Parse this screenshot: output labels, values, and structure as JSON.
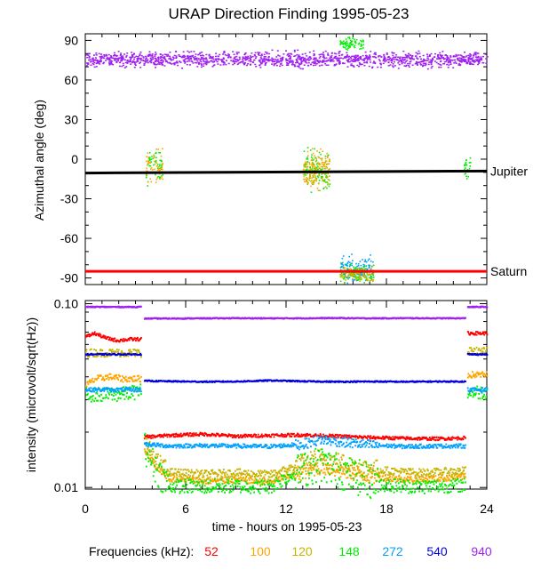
{
  "chart_data": [
    {
      "type": "scatter",
      "title": "URAP Direction Finding  1995-05-23",
      "xlabel": "",
      "ylabel": "Azimuthal angle (deg)",
      "xlim": [
        0,
        24
      ],
      "ylim": [
        -95,
        95
      ],
      "yticks": [
        90,
        60,
        30,
        0,
        -30,
        -60,
        -90
      ],
      "reference_lines": [
        {
          "name": "Jupiter",
          "y_start": -10.5,
          "y_end": -9,
          "color": "#000000"
        },
        {
          "name": "Saturn",
          "y_start": -85,
          "y_end": -85,
          "color": "#ff0000"
        }
      ],
      "clusters": [
        {
          "frequency_khz": "940",
          "x_range": [
            0,
            24
          ],
          "y_center": 76,
          "y_spread": 5,
          "color": "#a020f0",
          "density": "continuous"
        },
        {
          "frequency_khz": "148",
          "x_range": [
            3.6,
            4.6
          ],
          "y_center": -5,
          "y_spread": 12,
          "color": "#00ee00",
          "density": "sparse"
        },
        {
          "frequency_khz": "100",
          "x_range": [
            3.6,
            4.6
          ],
          "y_center": -5,
          "y_spread": 10,
          "color": "#ffa500",
          "density": "sparse"
        },
        {
          "frequency_khz": "148",
          "x_range": [
            13.0,
            14.6
          ],
          "y_center": -8,
          "y_spread": 14,
          "color": "#00ee00",
          "density": "sparse"
        },
        {
          "frequency_khz": "100",
          "x_range": [
            13.0,
            14.6
          ],
          "y_center": -6,
          "y_spread": 12,
          "color": "#ffa500",
          "density": "sparse"
        },
        {
          "frequency_khz": "120",
          "x_range": [
            13.0,
            14.6
          ],
          "y_center": -8,
          "y_spread": 12,
          "color": "#c8b400",
          "density": "sparse"
        },
        {
          "frequency_khz": "148",
          "x_range": [
            15.2,
            17.2
          ],
          "y_center": -86,
          "y_spread": 6,
          "color": "#00ee00",
          "density": "sparse"
        },
        {
          "frequency_khz": "272",
          "x_range": [
            15.2,
            17.2
          ],
          "y_center": -83,
          "y_spread": 8,
          "color": "#00a0ff",
          "density": "sparse"
        },
        {
          "frequency_khz": "120",
          "x_range": [
            15.2,
            17.2
          ],
          "y_center": -87,
          "y_spread": 5,
          "color": "#c8b400",
          "density": "sparse"
        },
        {
          "frequency_khz": "148",
          "x_range": [
            22.6,
            23.0
          ],
          "y_center": -5,
          "y_spread": 8,
          "color": "#00ee00",
          "density": "sparse"
        },
        {
          "frequency_khz": "148",
          "x_range": [
            15.2,
            16.6
          ],
          "y_center": 88,
          "y_spread": 4,
          "color": "#00ee00",
          "density": "sparse"
        }
      ]
    },
    {
      "type": "line",
      "title": "",
      "xlabel": "time - hours on 1995-05-23",
      "ylabel": "intensity (microvolt/sqrt(Hz))",
      "xlim": [
        0,
        24
      ],
      "ylim": [
        0.0098,
        0.104
      ],
      "yscale": "log",
      "yticks": [
        0.1,
        0.01
      ],
      "ytick_labels": [
        "0.10",
        "0.01"
      ],
      "xticks": [
        0,
        6,
        12,
        18,
        24
      ],
      "xtick_labels": [
        "0",
        "6",
        "12",
        "18",
        "24"
      ],
      "series": [
        {
          "name": "52",
          "color": "#ff0000",
          "x": [
            0,
            0.5,
            1.2,
            1.9,
            2.6,
            3.3,
            3.5,
            5,
            7,
            9,
            11,
            13,
            15,
            17,
            19,
            21,
            22.7,
            22.8,
            24
          ],
          "y": [
            0.066,
            0.069,
            0.065,
            0.063,
            0.064,
            0.064,
            0.0188,
            0.0192,
            0.0195,
            0.019,
            0.0192,
            0.0193,
            0.019,
            0.0187,
            0.0185,
            0.0184,
            0.0186,
            0.069,
            0.069
          ]
        },
        {
          "name": "100",
          "color": "#ffa500",
          "x": [
            0,
            0.6,
            1.4,
            2.2,
            3.0,
            3.3,
            3.5,
            4.2,
            5,
            7,
            9,
            11,
            12.5,
            14,
            16,
            18,
            20,
            22.7,
            22.8,
            24
          ],
          "y": [
            0.036,
            0.039,
            0.04,
            0.039,
            0.039,
            0.039,
            0.016,
            0.013,
            0.0112,
            0.0108,
            0.011,
            0.0107,
            0.0118,
            0.013,
            0.012,
            0.0112,
            0.011,
            0.0114,
            0.041,
            0.041
          ]
        },
        {
          "name": "120",
          "color": "#c8b400",
          "x": [
            0,
            1,
            2,
            3.3,
            3.5,
            4.2,
            5,
            7,
            9,
            11,
            12.5,
            14,
            16,
            18,
            20,
            22.7,
            22.8,
            24
          ],
          "y": [
            0.054,
            0.054,
            0.054,
            0.054,
            0.0178,
            0.014,
            0.0121,
            0.0118,
            0.012,
            0.0117,
            0.013,
            0.0145,
            0.013,
            0.0123,
            0.012,
            0.0123,
            0.055,
            0.055
          ]
        },
        {
          "name": "148",
          "color": "#00ee00",
          "x": [
            0,
            1,
            2,
            3.0,
            3.3,
            3.5,
            4.2,
            5,
            7,
            9,
            11,
            12.5,
            14,
            16,
            18,
            20,
            22.7,
            22.8,
            24
          ],
          "y": [
            0.032,
            0.032,
            0.032,
            0.033,
            0.034,
            0.0165,
            0.0125,
            0.0102,
            0.0101,
            0.0102,
            0.0101,
            0.012,
            0.0135,
            0.0115,
            0.0103,
            0.0101,
            0.0103,
            0.033,
            0.033
          ]
        },
        {
          "name": "272",
          "color": "#00a0ff",
          "x": [
            0,
            1,
            2,
            3.0,
            3.3,
            3.5,
            5,
            7,
            9,
            11,
            13,
            14,
            15,
            17,
            19,
            21,
            22.7,
            22.8,
            24
          ],
          "y": [
            0.034,
            0.034,
            0.034,
            0.034,
            0.034,
            0.0172,
            0.0168,
            0.0169,
            0.0168,
            0.0167,
            0.0172,
            0.0182,
            0.0178,
            0.017,
            0.0167,
            0.0168,
            0.0168,
            0.034,
            0.034
          ]
        },
        {
          "name": "540",
          "color": "#0000dd",
          "x": [
            0,
            1,
            2,
            3.3,
            3.5,
            5,
            7,
            9,
            11,
            13,
            15,
            17,
            19,
            21,
            22.7,
            22.8,
            24
          ],
          "y": [
            0.053,
            0.053,
            0.053,
            0.053,
            0.038,
            0.0378,
            0.0376,
            0.0377,
            0.0382,
            0.0378,
            0.0376,
            0.0377,
            0.0376,
            0.0377,
            0.0377,
            0.053,
            0.053
          ]
        },
        {
          "name": "940",
          "color": "#a020f0",
          "x": [
            0,
            1,
            2,
            3.3,
            3.5,
            5,
            7,
            9,
            11,
            13,
            15,
            17,
            19,
            21,
            22.7,
            22.8,
            24
          ],
          "y": [
            0.096,
            0.096,
            0.096,
            0.096,
            0.083,
            0.083,
            0.0832,
            0.0834,
            0.0832,
            0.0833,
            0.0835,
            0.0832,
            0.0834,
            0.0833,
            0.0833,
            0.096,
            0.096
          ]
        }
      ],
      "legend_title": "Frequencies (kHz):",
      "legend_position": "bottom"
    }
  ]
}
